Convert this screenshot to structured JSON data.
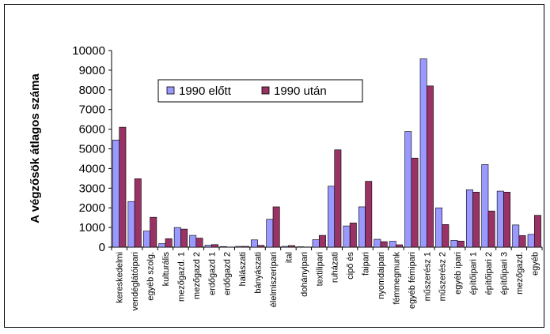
{
  "chart_data": {
    "type": "bar",
    "title": "",
    "xlabel": "",
    "ylabel": "A végzősök átlagos száma",
    "ylim": [
      0,
      10000
    ],
    "yticks": [
      0,
      1000,
      2000,
      3000,
      4000,
      5000,
      6000,
      7000,
      8000,
      9000,
      10000
    ],
    "grid": false,
    "legend_position": "upper-left inside plot",
    "categories": [
      "kereskedelmi",
      "vendéglátóipari",
      "egyéb szolg.",
      "kulturális",
      "mezőgazd. 1",
      "mezőgazd 2",
      "erdőgazd 1",
      "erdőgazd 2",
      "halászati",
      "bányászati",
      "élelmiszeripari",
      "ital",
      "dohányipari",
      "textilipari",
      "ruházati",
      "cipő és",
      "faipari",
      "nyomdaipari",
      "fémmegmunk",
      "egyéb fémipari",
      "műszerész 1",
      "műszerész 2",
      "egyéb ipari",
      "építőipari 1",
      "építőipari 2",
      "építőipari 3",
      "mezőgazd.",
      "egyéb"
    ],
    "series": [
      {
        "name": "1990 előtt",
        "color": "#9999ff",
        "values": [
          5450,
          2320,
          820,
          180,
          1000,
          600,
          100,
          30,
          40,
          370,
          1420,
          40,
          20,
          380,
          3100,
          1080,
          2050,
          400,
          300,
          5880,
          9580,
          2000,
          350,
          2920,
          4200,
          2850,
          1130,
          650
        ]
      },
      {
        "name": "1990 után",
        "color": "#993366",
        "values": [
          6100,
          3480,
          1520,
          430,
          920,
          460,
          130,
          0,
          40,
          90,
          2050,
          80,
          10,
          600,
          4950,
          1230,
          3350,
          280,
          120,
          4530,
          8200,
          1150,
          310,
          2800,
          1840,
          2800,
          590,
          1620
        ]
      }
    ]
  }
}
